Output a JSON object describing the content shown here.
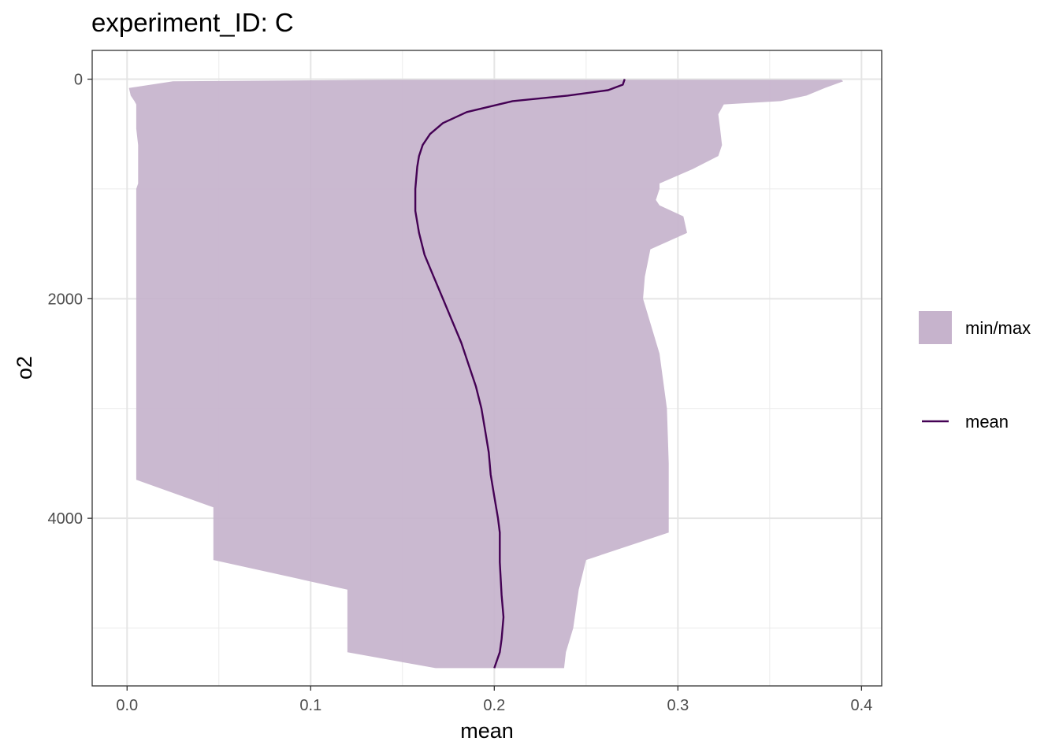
{
  "chart_data": {
    "type": "area",
    "title": "experiment_ID: C",
    "xlabel": "mean",
    "ylabel": "o2",
    "xlim": [
      -0.019,
      0.411
    ],
    "ylim": [
      5527,
      -262
    ],
    "y_reversed": true,
    "grid": true,
    "legend_position": "right",
    "x_ticks": [
      0.0,
      0.1,
      0.2,
      0.3,
      0.4
    ],
    "x_tick_labels": [
      "0.0",
      "0.1",
      "0.2",
      "0.3",
      "0.4"
    ],
    "y_ticks": [
      0,
      2000,
      4000
    ],
    "y_tick_labels": [
      "0",
      "2000",
      "4000"
    ],
    "legend": [
      {
        "label": "min/max",
        "kind": "fill",
        "color": "#c6b3cc"
      },
      {
        "label": "mean",
        "kind": "line",
        "color": "#440154"
      }
    ],
    "ribbon": {
      "name": "min/max",
      "color": "#c6b3cc",
      "points": [
        {
          "y": 5,
          "min": 0.145,
          "max": 0.389
        },
        {
          "y": 20,
          "min": 0.025,
          "max": 0.39
        },
        {
          "y": 80,
          "min": 0.001,
          "max": 0.38
        },
        {
          "y": 150,
          "min": 0.002,
          "max": 0.37
        },
        {
          "y": 200,
          "min": 0.004,
          "max": 0.356
        },
        {
          "y": 230,
          "min": 0.005,
          "max": 0.325
        },
        {
          "y": 320,
          "min": 0.005,
          "max": 0.322
        },
        {
          "y": 450,
          "min": 0.005,
          "max": 0.323
        },
        {
          "y": 600,
          "min": 0.006,
          "max": 0.324
        },
        {
          "y": 700,
          "min": 0.006,
          "max": 0.322
        },
        {
          "y": 820,
          "min": 0.006,
          "max": 0.308
        },
        {
          "y": 950,
          "min": 0.006,
          "max": 0.29
        },
        {
          "y": 1000,
          "min": 0.005,
          "max": 0.29
        },
        {
          "y": 1100,
          "min": 0.005,
          "max": 0.288
        },
        {
          "y": 1150,
          "min": 0.005,
          "max": 0.29
        },
        {
          "y": 1250,
          "min": 0.005,
          "max": 0.303
        },
        {
          "y": 1400,
          "min": 0.005,
          "max": 0.305
        },
        {
          "y": 1550,
          "min": 0.005,
          "max": 0.285
        },
        {
          "y": 1800,
          "min": 0.005,
          "max": 0.282
        },
        {
          "y": 2000,
          "min": 0.005,
          "max": 0.281
        },
        {
          "y": 2500,
          "min": 0.005,
          "max": 0.29
        },
        {
          "y": 3000,
          "min": 0.005,
          "max": 0.294
        },
        {
          "y": 3500,
          "min": 0.005,
          "max": 0.295
        },
        {
          "y": 3650,
          "min": 0.005,
          "max": 0.295
        },
        {
          "y": 3900,
          "min": 0.047,
          "max": 0.295
        },
        {
          "y": 4130,
          "min": 0.047,
          "max": 0.295
        },
        {
          "y": 4380,
          "min": 0.047,
          "max": 0.25
        },
        {
          "y": 4650,
          "min": 0.12,
          "max": 0.246
        },
        {
          "y": 5000,
          "min": 0.12,
          "max": 0.243
        },
        {
          "y": 5220,
          "min": 0.12,
          "max": 0.239
        },
        {
          "y": 5365,
          "min": 0.168,
          "max": 0.238
        }
      ]
    },
    "series": [
      {
        "name": "mean",
        "color": "#440154",
        "points": [
          {
            "y": 0,
            "x": 0.271
          },
          {
            "y": 50,
            "x": 0.27
          },
          {
            "y": 100,
            "x": 0.262
          },
          {
            "y": 150,
            "x": 0.24
          },
          {
            "y": 200,
            "x": 0.21
          },
          {
            "y": 300,
            "x": 0.185
          },
          {
            "y": 400,
            "x": 0.172
          },
          {
            "y": 500,
            "x": 0.165
          },
          {
            "y": 600,
            "x": 0.161
          },
          {
            "y": 700,
            "x": 0.159
          },
          {
            "y": 800,
            "x": 0.158
          },
          {
            "y": 1000,
            "x": 0.157
          },
          {
            "y": 1200,
            "x": 0.157
          },
          {
            "y": 1400,
            "x": 0.159
          },
          {
            "y": 1600,
            "x": 0.162
          },
          {
            "y": 1800,
            "x": 0.167
          },
          {
            "y": 2000,
            "x": 0.172
          },
          {
            "y": 2200,
            "x": 0.177
          },
          {
            "y": 2400,
            "x": 0.182
          },
          {
            "y": 2600,
            "x": 0.186
          },
          {
            "y": 2800,
            "x": 0.19
          },
          {
            "y": 3000,
            "x": 0.193
          },
          {
            "y": 3200,
            "x": 0.195
          },
          {
            "y": 3400,
            "x": 0.197
          },
          {
            "y": 3600,
            "x": 0.198
          },
          {
            "y": 3800,
            "x": 0.2
          },
          {
            "y": 4000,
            "x": 0.202
          },
          {
            "y": 4130,
            "x": 0.203
          },
          {
            "y": 4400,
            "x": 0.203
          },
          {
            "y": 4700,
            "x": 0.204
          },
          {
            "y": 4900,
            "x": 0.205
          },
          {
            "y": 5100,
            "x": 0.204
          },
          {
            "y": 5220,
            "x": 0.203
          },
          {
            "y": 5365,
            "x": 0.2
          }
        ]
      }
    ]
  }
}
